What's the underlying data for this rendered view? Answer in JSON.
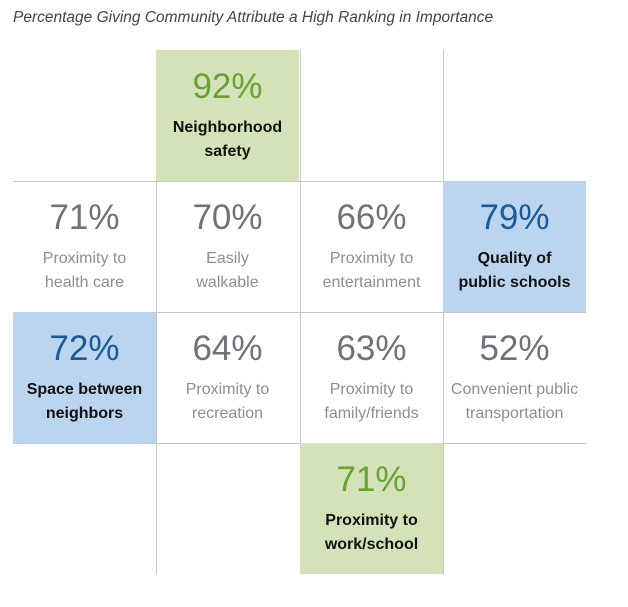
{
  "chart_data": {
    "type": "table",
    "title": "Percentage Giving Community Attribute a High Ranking in Importance",
    "cells": [
      {
        "row": 0,
        "col": 1,
        "value": "92%",
        "label": "Neighborhood\nsafety",
        "highlight": "green"
      },
      {
        "row": 1,
        "col": 0,
        "value": "71%",
        "label": "Proximity to\nhealth care",
        "highlight": "none"
      },
      {
        "row": 1,
        "col": 1,
        "value": "70%",
        "label": "Easily\nwalkable",
        "highlight": "none"
      },
      {
        "row": 1,
        "col": 2,
        "value": "66%",
        "label": "Proximity to\nentertainment",
        "highlight": "none"
      },
      {
        "row": 1,
        "col": 3,
        "value": "79%",
        "label": "Quality of\npublic schools",
        "highlight": "blue"
      },
      {
        "row": 2,
        "col": 0,
        "value": "72%",
        "label": "Space between\nneighbors",
        "highlight": "blue"
      },
      {
        "row": 2,
        "col": 1,
        "value": "64%",
        "label": "Proximity to\nrecreation",
        "highlight": "none"
      },
      {
        "row": 2,
        "col": 2,
        "value": "63%",
        "label": "Proximity to\nfamily/friends",
        "highlight": "none"
      },
      {
        "row": 2,
        "col": 3,
        "value": "52%",
        "label": "Convenient public\ntransportation",
        "highlight": "none"
      },
      {
        "row": 3,
        "col": 2,
        "value": "71%",
        "label": "Proximity to\nwork/school",
        "highlight": "green"
      }
    ],
    "colors": {
      "green_fill": "#d3e2b8",
      "blue_fill": "#bcd5ef",
      "green_text": "#6aa232",
      "blue_text": "#1b5a9a"
    }
  }
}
